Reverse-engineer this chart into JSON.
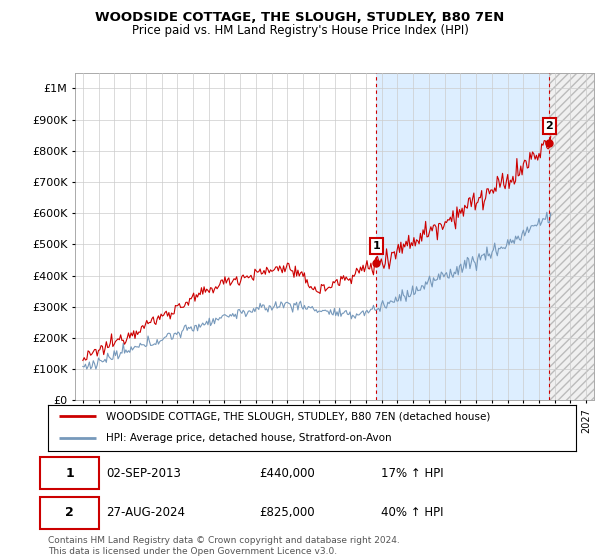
{
  "title": "WOODSIDE COTTAGE, THE SLOUGH, STUDLEY, B80 7EN",
  "subtitle": "Price paid vs. HM Land Registry's House Price Index (HPI)",
  "ytick_values": [
    0,
    100000,
    200000,
    300000,
    400000,
    500000,
    600000,
    700000,
    800000,
    900000,
    1000000
  ],
  "ylim": [
    0,
    1050000
  ],
  "xlim_start": 1994.5,
  "xlim_end": 2027.5,
  "red_line_color": "#cc0000",
  "blue_line_color": "#7799bb",
  "shade_color": "#ddeeff",
  "hatch_color": "#bbbbbb",
  "marker1_x": 2013.67,
  "marker1_y": 440000,
  "marker2_x": 2024.65,
  "marker2_y": 825000,
  "legend_line1": "WOODSIDE COTTAGE, THE SLOUGH, STUDLEY, B80 7EN (detached house)",
  "legend_line2": "HPI: Average price, detached house, Stratford-on-Avon",
  "table_row1_num": "1",
  "table_row1_date": "02-SEP-2013",
  "table_row1_price": "£440,000",
  "table_row1_hpi": "17% ↑ HPI",
  "table_row2_num": "2",
  "table_row2_date": "27-AUG-2024",
  "table_row2_price": "£825,000",
  "table_row2_hpi": "40% ↑ HPI",
  "footer": "Contains HM Land Registry data © Crown copyright and database right 2024.\nThis data is licensed under the Open Government Licence v3.0.",
  "grid_color": "#cccccc",
  "bg_color": "#ffffff"
}
